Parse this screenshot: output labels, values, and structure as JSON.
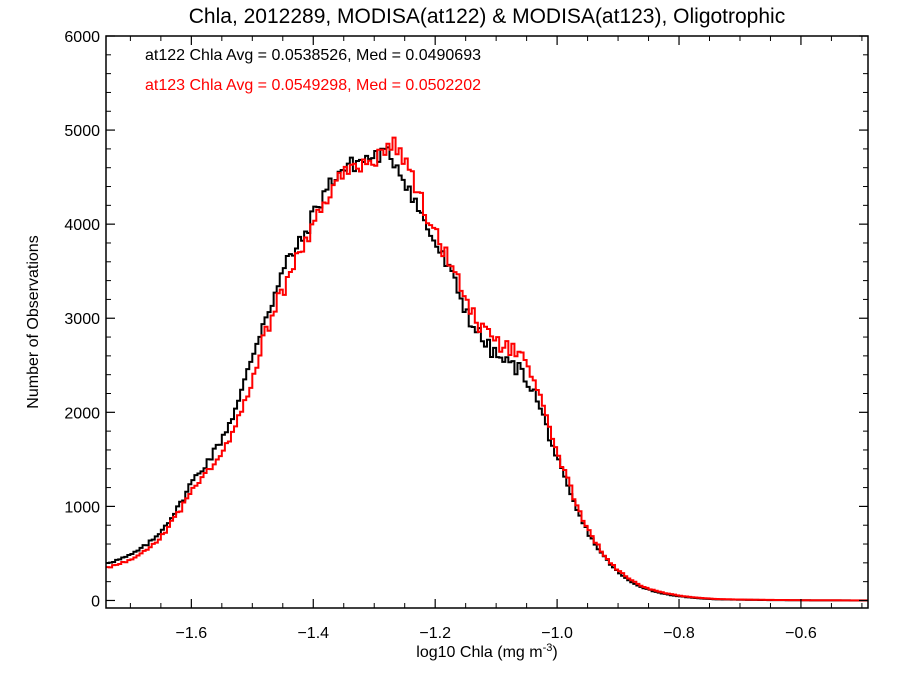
{
  "chart_data": {
    "type": "line",
    "step": true,
    "title": "Chla, 2012289, MODISA(at122) & MODISA(at123), Oligotrophic",
    "xlabel": "log10 Chla (mg m",
    "xlabel_sup": "-3",
    "xlabel_suffix": ")",
    "ylabel": "Number of Observations",
    "xlim": [
      -1.74,
      -0.49
    ],
    "ylim": [
      -80,
      6000
    ],
    "xticks": [
      -1.6,
      -1.4,
      -1.2,
      -1.0,
      -0.8,
      -0.6
    ],
    "xtick_labels": [
      "−1.6",
      "−1.4",
      "−1.2",
      "−1.0",
      "−0.8",
      "−0.6"
    ],
    "yticks": [
      0,
      1000,
      2000,
      3000,
      4000,
      5000,
      6000
    ],
    "ytick_labels": [
      "0",
      "1000",
      "2000",
      "3000",
      "4000",
      "5000",
      "6000"
    ],
    "grid": false,
    "annotations": [
      {
        "text": "at122 Chla Avg = 0.0538526, Med = 0.0490693",
        "color": "#000000"
      },
      {
        "text": "at123 Chla Avg = 0.0549298, Med = 0.0502202",
        "color": "#ff0000"
      }
    ],
    "series": [
      {
        "color": "#000000",
        "points": [
          [
            -1.74,
            400
          ],
          [
            -1.72,
            430
          ],
          [
            -1.7,
            480
          ],
          [
            -1.68,
            560
          ],
          [
            -1.66,
            660
          ],
          [
            -1.64,
            820
          ],
          [
            -1.62,
            1000
          ],
          [
            -1.6,
            1250
          ],
          [
            -1.58,
            1420
          ],
          [
            -1.56,
            1600
          ],
          [
            -1.54,
            1850
          ],
          [
            -1.52,
            2150
          ],
          [
            -1.5,
            2600
          ],
          [
            -1.48,
            3000
          ],
          [
            -1.46,
            3300
          ],
          [
            -1.44,
            3650
          ],
          [
            -1.42,
            3800
          ],
          [
            -1.4,
            4100
          ],
          [
            -1.38,
            4350
          ],
          [
            -1.36,
            4550
          ],
          [
            -1.34,
            4620
          ],
          [
            -1.32,
            4680
          ],
          [
            -1.3,
            4720
          ],
          [
            -1.28,
            4750
          ],
          [
            -1.27,
            4700
          ],
          [
            -1.26,
            4600
          ],
          [
            -1.24,
            4350
          ],
          [
            -1.22,
            4050
          ],
          [
            -1.2,
            3800
          ],
          [
            -1.18,
            3550
          ],
          [
            -1.16,
            3250
          ],
          [
            -1.14,
            2950
          ],
          [
            -1.12,
            2750
          ],
          [
            -1.1,
            2600
          ],
          [
            -1.08,
            2520
          ],
          [
            -1.06,
            2450
          ],
          [
            -1.04,
            2250
          ],
          [
            -1.02,
            1900
          ],
          [
            -1.0,
            1500
          ],
          [
            -0.98,
            1150
          ],
          [
            -0.96,
            850
          ],
          [
            -0.94,
            620
          ],
          [
            -0.92,
            440
          ],
          [
            -0.9,
            300
          ],
          [
            -0.88,
            200
          ],
          [
            -0.86,
            140
          ],
          [
            -0.84,
            95
          ],
          [
            -0.82,
            65
          ],
          [
            -0.8,
            45
          ],
          [
            -0.78,
            30
          ],
          [
            -0.76,
            20
          ],
          [
            -0.74,
            12
          ],
          [
            -0.7,
            8
          ],
          [
            -0.65,
            4
          ],
          [
            -0.6,
            2
          ],
          [
            -0.55,
            1
          ],
          [
            -0.5,
            0
          ]
        ]
      },
      {
        "color": "#ff0000",
        "points": [
          [
            -1.74,
            350
          ],
          [
            -1.72,
            380
          ],
          [
            -1.7,
            430
          ],
          [
            -1.68,
            500
          ],
          [
            -1.66,
            600
          ],
          [
            -1.64,
            760
          ],
          [
            -1.62,
            940
          ],
          [
            -1.6,
            1180
          ],
          [
            -1.58,
            1340
          ],
          [
            -1.56,
            1480
          ],
          [
            -1.54,
            1700
          ],
          [
            -1.52,
            1980
          ],
          [
            -1.5,
            2380
          ],
          [
            -1.48,
            2800
          ],
          [
            -1.46,
            3150
          ],
          [
            -1.44,
            3450
          ],
          [
            -1.42,
            3700
          ],
          [
            -1.4,
            4000
          ],
          [
            -1.38,
            4250
          ],
          [
            -1.36,
            4480
          ],
          [
            -1.34,
            4580
          ],
          [
            -1.32,
            4630
          ],
          [
            -1.3,
            4680
          ],
          [
            -1.28,
            4800
          ],
          [
            -1.27,
            4900
          ],
          [
            -1.26,
            4800
          ],
          [
            -1.24,
            4550
          ],
          [
            -1.22,
            4200
          ],
          [
            -1.2,
            3900
          ],
          [
            -1.18,
            3650
          ],
          [
            -1.16,
            3400
          ],
          [
            -1.14,
            3050
          ],
          [
            -1.12,
            2850
          ],
          [
            -1.1,
            2730
          ],
          [
            -1.08,
            2680
          ],
          [
            -1.06,
            2600
          ],
          [
            -1.04,
            2350
          ],
          [
            -1.02,
            2000
          ],
          [
            -1.0,
            1600
          ],
          [
            -0.98,
            1230
          ],
          [
            -0.96,
            900
          ],
          [
            -0.94,
            650
          ],
          [
            -0.92,
            460
          ],
          [
            -0.9,
            320
          ],
          [
            -0.88,
            220
          ],
          [
            -0.86,
            150
          ],
          [
            -0.84,
            105
          ],
          [
            -0.82,
            75
          ],
          [
            -0.8,
            52
          ],
          [
            -0.78,
            36
          ],
          [
            -0.76,
            25
          ],
          [
            -0.74,
            16
          ],
          [
            -0.7,
            10
          ],
          [
            -0.65,
            6
          ],
          [
            -0.6,
            3
          ],
          [
            -0.55,
            2
          ],
          [
            -0.5,
            1
          ]
        ]
      }
    ]
  }
}
